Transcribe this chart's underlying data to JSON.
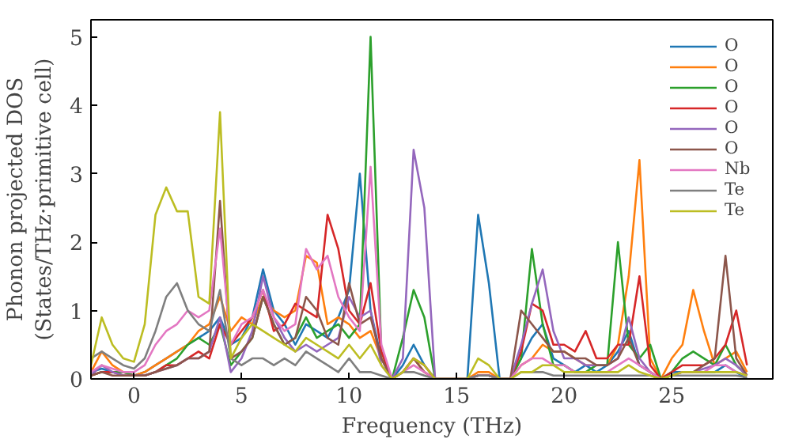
{
  "chart_data": {
    "type": "line",
    "xlabel": "Frequency (THz)",
    "ylabel": "Phonon projected DOS\n(States/THz·primitive cell)",
    "xlim": [
      -2,
      29.7
    ],
    "ylim": [
      0,
      5.25
    ],
    "xticks": [
      0,
      5,
      10,
      15,
      20,
      25
    ],
    "yticks": [
      0,
      1,
      2,
      3,
      4,
      5
    ],
    "grid": false,
    "legend": "top right",
    "marker": "none",
    "line_style": "solid",
    "x": [
      -2,
      -1.5,
      -1,
      -0.5,
      0,
      0.5,
      1,
      1.5,
      2,
      2.5,
      3,
      3.5,
      4,
      4.5,
      5,
      5.5,
      6,
      6.5,
      7,
      7.5,
      8,
      8.5,
      9,
      9.5,
      10,
      10.5,
      11,
      11.5,
      12,
      12.5,
      13,
      13.5,
      14,
      14.5,
      15,
      15.5,
      16,
      16.5,
      17,
      17.5,
      18,
      18.5,
      19,
      19.5,
      20,
      20.5,
      21,
      21.5,
      22,
      22.5,
      23,
      23.5,
      24,
      24.5,
      25,
      25.5,
      26,
      26.5,
      27,
      27.5,
      28,
      28.5
    ],
    "series": [
      {
        "name": "O",
        "color": "#1f77b4",
        "values": [
          0.1,
          0.15,
          0.1,
          0.1,
          0.05,
          0.1,
          0.2,
          0.3,
          0.4,
          0.5,
          0.6,
          0.7,
          0.9,
          0.5,
          0.6,
          0.9,
          1.6,
          1.0,
          0.8,
          0.5,
          0.8,
          0.7,
          0.6,
          0.9,
          1.3,
          3.0,
          1.0,
          0.3,
          0,
          0.2,
          0.5,
          0.2,
          0,
          0,
          0,
          0,
          2.4,
          1.4,
          0,
          0,
          0.3,
          0.6,
          0.8,
          0.3,
          0.2,
          0.1,
          0.2,
          0.1,
          0.2,
          0.4,
          0.7,
          0.2,
          0.1,
          0,
          0.1,
          0.1,
          0.1,
          0.1,
          0.1,
          0.2,
          0.1,
          0
        ]
      },
      {
        "name": "O",
        "color": "#ff7f0e",
        "values": [
          0.1,
          0.4,
          0.2,
          0.1,
          0.05,
          0.1,
          0.2,
          0.3,
          0.4,
          0.5,
          0.7,
          0.8,
          1.2,
          0.7,
          0.9,
          0.8,
          1.2,
          1.0,
          0.9,
          1.0,
          1.8,
          1.7,
          0.8,
          0.9,
          0.8,
          0.6,
          0.7,
          0.3,
          0,
          0.1,
          0.3,
          0.1,
          0,
          0,
          0,
          0,
          0.1,
          0.1,
          0,
          0,
          0.2,
          0.3,
          0.5,
          0.4,
          0.4,
          0.3,
          0.2,
          0.2,
          0.2,
          0.5,
          1.5,
          3.2,
          0.3,
          0,
          0.3,
          0.5,
          1.3,
          0.7,
          0.2,
          0.3,
          0.4,
          0.1
        ]
      },
      {
        "name": "O",
        "color": "#2ca02c",
        "values": [
          0.05,
          0.1,
          0.1,
          0.1,
          0.05,
          0.05,
          0.1,
          0.2,
          0.3,
          0.5,
          0.6,
          0.5,
          0.8,
          0.2,
          0.4,
          0.6,
          1.2,
          0.8,
          0.5,
          0.6,
          0.9,
          0.6,
          0.7,
          0.8,
          0.6,
          0.8,
          5.0,
          0.4,
          0,
          0.6,
          1.3,
          0.9,
          0,
          0,
          0,
          0,
          0.05,
          0.05,
          0,
          0,
          0.3,
          1.9,
          0.8,
          0.2,
          0.2,
          0.1,
          0.1,
          0.2,
          0.2,
          2.0,
          0.5,
          0.3,
          0.5,
          0,
          0.1,
          0.3,
          0.4,
          0.3,
          0.2,
          0.5,
          0.2,
          0.05
        ]
      },
      {
        "name": "O",
        "color": "#d62728",
        "values": [
          0.05,
          0.1,
          0.1,
          0.05,
          0.05,
          0.05,
          0.1,
          0.2,
          0.2,
          0.3,
          0.4,
          0.3,
          0.8,
          0.5,
          0.7,
          0.9,
          1.3,
          0.7,
          0.8,
          1.1,
          1.0,
          0.9,
          2.4,
          1.9,
          1.0,
          0.8,
          1.4,
          0.4,
          0,
          0.1,
          0.3,
          0.2,
          0,
          0,
          0,
          0,
          0.05,
          0.05,
          0,
          0,
          0.4,
          1.1,
          1.0,
          0.5,
          0.5,
          0.4,
          0.7,
          0.3,
          0.3,
          0.5,
          0.5,
          1.5,
          0.2,
          0,
          0.1,
          0.2,
          0.2,
          0.2,
          0.3,
          0.5,
          1.0,
          0.2
        ]
      },
      {
        "name": "O",
        "color": "#9467bd",
        "values": [
          0.05,
          0.2,
          0.1,
          0.05,
          0.05,
          0.05,
          0.1,
          0.15,
          0.2,
          0.3,
          0.3,
          0.4,
          0.9,
          0.1,
          0.3,
          0.7,
          1.5,
          0.9,
          0.6,
          0.4,
          0.5,
          0.4,
          0.5,
          0.6,
          1.2,
          0.9,
          1.0,
          0.2,
          0,
          0.3,
          3.35,
          2.5,
          0,
          0,
          0,
          0,
          0.05,
          0.05,
          0,
          0,
          0.5,
          1.1,
          1.6,
          0.7,
          0.3,
          0.3,
          0.2,
          0.2,
          0.2,
          0.3,
          0.9,
          0.3,
          0.1,
          0,
          0.05,
          0.1,
          0.1,
          0.15,
          0.2,
          0.3,
          0.2,
          0.05
        ]
      },
      {
        "name": "O",
        "color": "#8c564b",
        "values": [
          0.05,
          0.1,
          0.05,
          0.05,
          0.05,
          0.05,
          0.1,
          0.15,
          0.2,
          0.3,
          0.3,
          0.4,
          2.6,
          0.3,
          0.4,
          0.6,
          1.2,
          0.8,
          0.5,
          0.6,
          1.2,
          1.0,
          0.6,
          0.5,
          1.4,
          0.8,
          0.9,
          0.3,
          0,
          0.1,
          0.3,
          0.1,
          0,
          0,
          0,
          0,
          0.05,
          0.05,
          0,
          0,
          1.0,
          0.8,
          0.6,
          0.4,
          0.4,
          0.3,
          0.3,
          0.2,
          0.2,
          0.3,
          0.6,
          0.2,
          0.1,
          0,
          0.05,
          0.1,
          0.1,
          0.2,
          0.3,
          1.8,
          0.3,
          0.05
        ]
      },
      {
        "name": "Nb",
        "color": "#e377c2",
        "values": [
          0.1,
          0.2,
          0.15,
          0.1,
          0.1,
          0.2,
          0.5,
          0.7,
          0.8,
          1.0,
          0.9,
          1.0,
          2.2,
          0.5,
          0.8,
          0.9,
          1.3,
          0.9,
          0.7,
          0.8,
          1.9,
          1.6,
          1.8,
          1.2,
          0.9,
          0.7,
          3.1,
          0.5,
          0,
          0.1,
          0.2,
          0.1,
          0,
          0,
          0,
          0,
          0.05,
          0.05,
          0,
          0,
          0.2,
          0.3,
          0.3,
          0.2,
          0.2,
          0.1,
          0.1,
          0.1,
          0.1,
          0.2,
          0.3,
          0.2,
          0.1,
          0,
          0.05,
          0.1,
          0.1,
          0.1,
          0.2,
          0.2,
          0.1,
          0.05
        ]
      },
      {
        "name": "Te",
        "color": "#7f7f7f",
        "values": [
          0.3,
          0.4,
          0.3,
          0.2,
          0.15,
          0.3,
          0.7,
          1.2,
          1.4,
          1.0,
          0.8,
          0.7,
          1.3,
          0.3,
          0.2,
          0.3,
          0.3,
          0.2,
          0.3,
          0.2,
          0.4,
          0.3,
          0.2,
          0.1,
          0.3,
          0.1,
          0.1,
          0.05,
          0,
          0.1,
          0.1,
          0.05,
          0,
          0,
          0,
          0,
          0.05,
          0.05,
          0,
          0,
          0.1,
          0.1,
          0.1,
          0.05,
          0.05,
          0.05,
          0.05,
          0.05,
          0.05,
          0.05,
          0.05,
          0.05,
          0.05,
          0,
          0.05,
          0.05,
          0.05,
          0.05,
          0.05,
          0.05,
          0.05,
          0.02
        ]
      },
      {
        "name": "Te",
        "color": "#bcbd22",
        "values": [
          0.2,
          0.9,
          0.5,
          0.3,
          0.25,
          0.8,
          2.4,
          2.8,
          2.45,
          2.45,
          1.2,
          1.1,
          3.9,
          0.3,
          0.6,
          0.8,
          0.7,
          0.6,
          0.5,
          0.4,
          0.6,
          0.5,
          0.4,
          0.3,
          0.5,
          0.3,
          0.5,
          0.2,
          0,
          0.1,
          0.3,
          0.2,
          0,
          0,
          0,
          0,
          0.3,
          0.2,
          0,
          0,
          0.1,
          0.1,
          0.2,
          0.2,
          0.1,
          0.1,
          0.1,
          0.1,
          0.1,
          0.1,
          0.2,
          0.1,
          0.05,
          0,
          0.05,
          0.1,
          0.1,
          0.1,
          0.1,
          0.1,
          0.1,
          0.05
        ]
      }
    ]
  }
}
